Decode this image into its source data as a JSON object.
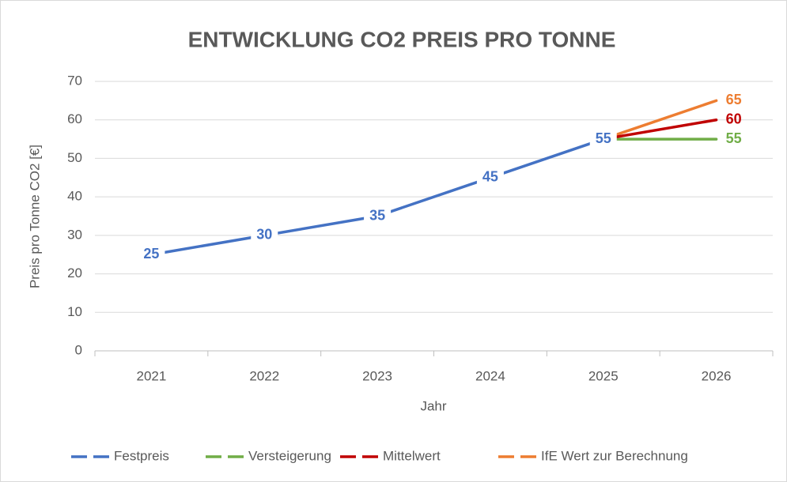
{
  "chart_data": {
    "type": "line",
    "title": "ENTWICKLUNG CO2 PREIS PRO TONNE",
    "x_label": "Jahr",
    "y_label": "Preis pro Tonne CO2 [€]",
    "categories": [
      "2021",
      "2022",
      "2023",
      "2024",
      "2025",
      "2026"
    ],
    "series": [
      {
        "name": "Festpreis",
        "color": "#4472c4",
        "values": [
          25,
          30,
          35,
          45,
          55,
          null
        ]
      },
      {
        "name": "Versteigerung",
        "color": "#70ad47",
        "values": [
          null,
          null,
          null,
          null,
          55,
          55
        ]
      },
      {
        "name": "Mittelwert",
        "color": "#c00000",
        "values": [
          null,
          null,
          null,
          null,
          55,
          60
        ]
      },
      {
        "name": "IfE Wert zur Berechnung",
        "color": "#ed7d31",
        "values": [
          null,
          null,
          null,
          null,
          55,
          65
        ]
      }
    ],
    "ylim": [
      0,
      70
    ],
    "yticks": [
      0,
      10,
      20,
      30,
      40,
      50,
      60,
      70
    ],
    "grid": true,
    "legend": "bottom"
  }
}
